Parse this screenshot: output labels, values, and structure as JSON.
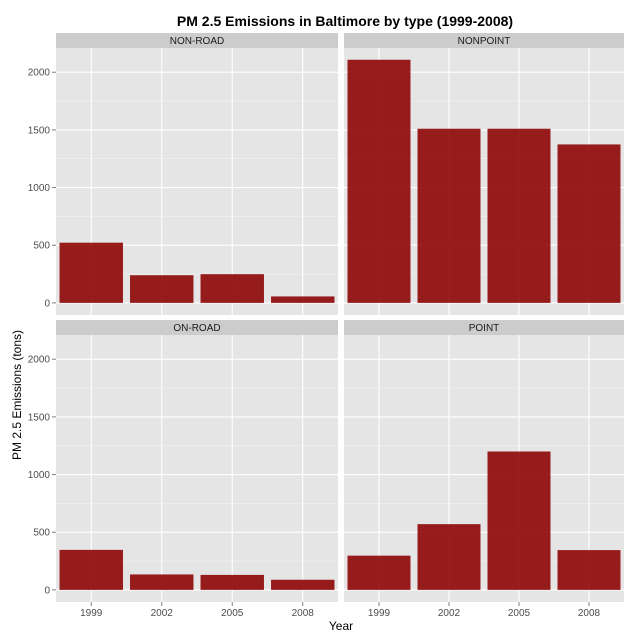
{
  "chart_data": {
    "type": "bar",
    "title": "PM 2.5 Emissions in Baltimore by type (1999-2008)",
    "xlabel": "Year",
    "ylabel": "PM 2.5 Emissions (tons)",
    "categories": [
      "1999",
      "2002",
      "2005",
      "2008"
    ],
    "y_ticks": [
      0,
      500,
      1000,
      1500,
      2000
    ],
    "ylim": [
      -105,
      2210
    ],
    "grid": true,
    "bar_color": "#8b0000",
    "panel_background": "#e5e5e5",
    "strip_background": "#cccccc",
    "facets": [
      {
        "name": "NON-ROAD",
        "values": [
          522,
          240,
          249,
          56
        ]
      },
      {
        "name": "NONPOINT",
        "values": [
          2108,
          1510,
          1510,
          1374
        ]
      },
      {
        "name": "ON-ROAD",
        "values": [
          347,
          134,
          130,
          88
        ]
      },
      {
        "name": "POINT",
        "values": [
          297,
          570,
          1200,
          345
        ]
      }
    ]
  }
}
